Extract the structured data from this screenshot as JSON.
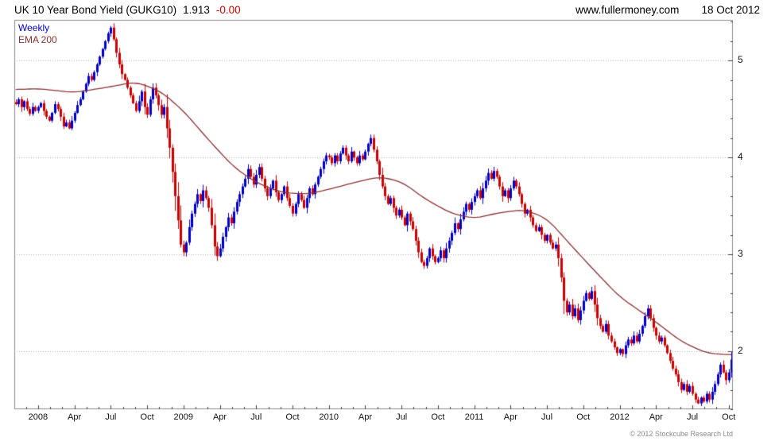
{
  "header": {
    "title": "UK 10 Year Bond Yield (GUKG10)",
    "last_price": "1.913",
    "change": "-0.00",
    "website": "www.fullermoney.com",
    "date": "18 Oct 2012"
  },
  "legend": {
    "series_label": "Weekly",
    "ema_label": "EMA 200"
  },
  "footer": {
    "copyright": "© 2012 Stockcube Research Ltd"
  },
  "colors": {
    "up": "#0000cc",
    "down": "#cc0000",
    "ema": "#8b3232",
    "grid": "#b8b8b8",
    "border": "#8c8c8c",
    "tick": "#444444",
    "background": "#ffffff"
  },
  "chart_data": {
    "type": "candlestick",
    "title": "UK 10 Year Bond Yield (GUKG10)",
    "interval": "Weekly",
    "overlay": "EMA 200",
    "last": 1.913,
    "ylim": [
      1.4,
      5.42
    ],
    "y_ticks": [
      2,
      3,
      4,
      5
    ],
    "y_minor_step": 0.2,
    "x_labels": [
      {
        "label": "2008",
        "week": 8
      },
      {
        "label": "Apr",
        "week": 21
      },
      {
        "label": "Jul",
        "week": 34
      },
      {
        "label": "Oct",
        "week": 47
      },
      {
        "label": "2009",
        "week": 60
      },
      {
        "label": "Apr",
        "week": 73
      },
      {
        "label": "Jul",
        "week": 86
      },
      {
        "label": "Oct",
        "week": 99
      },
      {
        "label": "2010",
        "week": 112
      },
      {
        "label": "Apr",
        "week": 125
      },
      {
        "label": "Jul",
        "week": 138
      },
      {
        "label": "Oct",
        "week": 151
      },
      {
        "label": "2011",
        "week": 164
      },
      {
        "label": "Apr",
        "week": 177
      },
      {
        "label": "Jul",
        "week": 190
      },
      {
        "label": "Oct",
        "week": 203
      },
      {
        "label": "2012",
        "week": 216
      },
      {
        "label": "Apr",
        "week": 229
      },
      {
        "label": "Jul",
        "week": 242
      },
      {
        "label": "Oct",
        "week": 255
      }
    ],
    "weeks_total": 257,
    "closes": [
      4.55,
      4.6,
      4.52,
      4.58,
      4.5,
      4.45,
      4.52,
      4.48,
      4.52,
      4.56,
      4.48,
      4.42,
      4.38,
      4.46,
      4.55,
      4.5,
      4.42,
      4.32,
      4.36,
      4.3,
      4.38,
      4.46,
      4.54,
      4.6,
      4.68,
      4.76,
      4.84,
      4.8,
      4.88,
      4.96,
      5.04,
      5.12,
      5.2,
      5.28,
      5.34,
      5.22,
      5.08,
      4.96,
      4.86,
      4.8,
      4.72,
      4.64,
      4.56,
      4.48,
      4.58,
      4.68,
      4.52,
      4.44,
      4.6,
      4.72,
      4.64,
      4.54,
      4.44,
      4.52,
      4.3,
      4.1,
      3.85,
      3.6,
      3.35,
      3.1,
      3.02,
      3.12,
      3.28,
      3.42,
      3.52,
      3.62,
      3.55,
      3.66,
      3.58,
      3.48,
      3.3,
      3.08,
      2.98,
      3.06,
      3.18,
      3.28,
      3.38,
      3.32,
      3.44,
      3.54,
      3.62,
      3.7,
      3.78,
      3.88,
      3.8,
      3.72,
      3.82,
      3.9,
      3.78,
      3.68,
      3.6,
      3.68,
      3.76,
      3.64,
      3.56,
      3.62,
      3.7,
      3.58,
      3.5,
      3.42,
      3.52,
      3.62,
      3.56,
      3.48,
      3.58,
      3.68,
      3.62,
      3.72,
      3.8,
      3.88,
      3.96,
      4.02,
      4.0,
      3.94,
      4.02,
      3.96,
      4.04,
      4.1,
      4.02,
      3.96,
      4.06,
      4.0,
      3.94,
      4.02,
      3.98,
      4.06,
      4.14,
      4.2,
      4.08,
      3.96,
      3.82,
      3.7,
      3.6,
      3.52,
      3.58,
      3.48,
      3.4,
      3.46,
      3.38,
      3.3,
      3.42,
      3.34,
      3.26,
      3.14,
      3.02,
      2.92,
      2.88,
      2.96,
      3.06,
      2.98,
      2.92,
      2.96,
      3.04,
      2.96,
      3.06,
      3.14,
      3.22,
      3.32,
      3.26,
      3.36,
      3.44,
      3.52,
      3.46,
      3.54,
      3.6,
      3.66,
      3.58,
      3.68,
      3.76,
      3.84,
      3.78,
      3.86,
      3.8,
      3.7,
      3.6,
      3.66,
      3.58,
      3.68,
      3.76,
      3.7,
      3.62,
      3.52,
      3.42,
      3.46,
      3.38,
      3.3,
      3.24,
      3.28,
      3.2,
      3.14,
      3.2,
      3.12,
      3.06,
      3.1,
      2.96,
      2.76,
      2.52,
      2.4,
      2.48,
      2.36,
      2.44,
      2.32,
      2.42,
      2.52,
      2.6,
      2.54,
      2.62,
      2.48,
      2.34,
      2.26,
      2.2,
      2.28,
      2.16,
      2.1,
      2.04,
      1.98,
      2.02,
      1.97,
      2.06,
      2.12,
      2.08,
      2.16,
      2.1,
      2.18,
      2.26,
      2.36,
      2.44,
      2.34,
      2.24,
      2.16,
      2.1,
      2.14,
      2.06,
      1.98,
      1.9,
      1.82,
      1.76,
      1.68,
      1.6,
      1.66,
      1.58,
      1.64,
      1.56,
      1.5,
      1.46,
      1.52,
      1.48,
      1.56,
      1.5,
      1.58,
      1.66,
      1.76,
      1.86,
      1.78,
      1.7,
      1.78,
      1.913
    ],
    "ema200": [
      [
        0,
        4.7
      ],
      [
        8,
        4.71
      ],
      [
        21,
        4.67
      ],
      [
        34,
        4.73
      ],
      [
        43,
        4.78
      ],
      [
        52,
        4.68
      ],
      [
        60,
        4.48
      ],
      [
        69,
        4.18
      ],
      [
        78,
        3.9
      ],
      [
        86,
        3.74
      ],
      [
        95,
        3.64
      ],
      [
        104,
        3.62
      ],
      [
        112,
        3.67
      ],
      [
        121,
        3.74
      ],
      [
        130,
        3.8
      ],
      [
        138,
        3.75
      ],
      [
        147,
        3.56
      ],
      [
        156,
        3.42
      ],
      [
        164,
        3.37
      ],
      [
        173,
        3.43
      ],
      [
        182,
        3.46
      ],
      [
        190,
        3.37
      ],
      [
        199,
        3.08
      ],
      [
        208,
        2.8
      ],
      [
        216,
        2.56
      ],
      [
        229,
        2.3
      ],
      [
        238,
        2.1
      ],
      [
        247,
        1.98
      ],
      [
        256,
        1.96
      ]
    ]
  }
}
